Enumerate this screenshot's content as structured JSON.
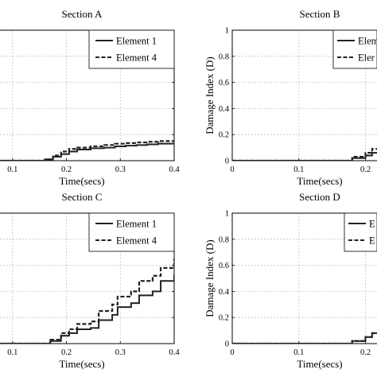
{
  "chart_data": [
    {
      "type": "line",
      "title": "Section A",
      "xlabel": "Time(secs)",
      "ylabel": "",
      "xlim": [
        0,
        0.4
      ],
      "ylim": [
        0,
        1
      ],
      "xticks": [
        "0.1",
        "0.2",
        "0.3",
        "0.4"
      ],
      "yticks": [],
      "grid": true,
      "legend": "top-right",
      "series": [
        {
          "name": "Element 1",
          "style": "solid",
          "x": [
            0,
            0.12,
            0.16,
            0.175,
            0.19,
            0.205,
            0.22,
            0.245,
            0.27,
            0.29,
            0.31,
            0.33,
            0.35,
            0.37,
            0.4
          ],
          "y": [
            0,
            0.0,
            0.01,
            0.03,
            0.05,
            0.07,
            0.085,
            0.095,
            0.1,
            0.11,
            0.115,
            0.12,
            0.125,
            0.13,
            0.13
          ]
        },
        {
          "name": "Element 4",
          "style": "dashed",
          "x": [
            0,
            0.12,
            0.16,
            0.175,
            0.19,
            0.205,
            0.22,
            0.245,
            0.27,
            0.29,
            0.31,
            0.33,
            0.35,
            0.37,
            0.4
          ],
          "y": [
            0,
            0.0,
            0.01,
            0.04,
            0.07,
            0.09,
            0.1,
            0.11,
            0.12,
            0.13,
            0.135,
            0.14,
            0.145,
            0.15,
            0.155
          ]
        }
      ]
    },
    {
      "type": "line",
      "title": "Section B",
      "xlabel": "Time(secs)",
      "ylabel": "Damage Index (D)",
      "xlim": [
        0,
        0.4
      ],
      "ylim": [
        0,
        1
      ],
      "xticks": [
        "0",
        "0.1",
        "0.2",
        "0.3"
      ],
      "yticks": [
        "0",
        "0.2",
        "0.4",
        "0.6",
        "0.8",
        "1"
      ],
      "grid": true,
      "legend": "top-right",
      "series": [
        {
          "name": "Elem",
          "style": "solid",
          "x": [
            0,
            0.14,
            0.18,
            0.2,
            0.21,
            0.23,
            0.245,
            0.26,
            0.275,
            0.29,
            0.3,
            0.31
          ],
          "y": [
            0,
            0.0,
            0.02,
            0.04,
            0.06,
            0.1,
            0.12,
            0.12,
            0.17,
            0.17,
            0.22,
            0.24
          ]
        },
        {
          "name": "Eler",
          "style": "dashed",
          "x": [
            0,
            0.14,
            0.18,
            0.2,
            0.21,
            0.23,
            0.245,
            0.26,
            0.275,
            0.29,
            0.3,
            0.31
          ],
          "y": [
            0,
            0.0,
            0.03,
            0.06,
            0.09,
            0.14,
            0.17,
            0.18,
            0.24,
            0.25,
            0.29,
            0.32
          ]
        }
      ]
    },
    {
      "type": "line",
      "title": "Section C",
      "xlabel": "Time(secs)",
      "ylabel": "",
      "xlim": [
        0,
        0.4
      ],
      "ylim": [
        0,
        1
      ],
      "xticks": [
        "0.1",
        "0.2",
        "0.3",
        "0.4"
      ],
      "yticks": [],
      "grid": true,
      "legend": "top-right",
      "series": [
        {
          "name": "Element 1",
          "style": "solid",
          "x": [
            0,
            0.12,
            0.17,
            0.19,
            0.205,
            0.22,
            0.245,
            0.26,
            0.285,
            0.295,
            0.32,
            0.335,
            0.36,
            0.375,
            0.4
          ],
          "y": [
            0,
            0.0,
            0.02,
            0.06,
            0.08,
            0.11,
            0.12,
            0.18,
            0.22,
            0.28,
            0.31,
            0.37,
            0.4,
            0.48,
            0.53
          ]
        },
        {
          "name": "Element 4",
          "style": "dashed",
          "x": [
            0,
            0.12,
            0.17,
            0.19,
            0.205,
            0.22,
            0.245,
            0.26,
            0.285,
            0.295,
            0.32,
            0.335,
            0.36,
            0.375,
            0.4
          ],
          "y": [
            0,
            0.0,
            0.03,
            0.08,
            0.11,
            0.15,
            0.17,
            0.25,
            0.3,
            0.36,
            0.4,
            0.48,
            0.52,
            0.58,
            0.65
          ]
        }
      ]
    },
    {
      "type": "line",
      "title": "Section D",
      "xlabel": "Time(secs)",
      "ylabel": "Damage Index (D)",
      "xlim": [
        0,
        0.4
      ],
      "ylim": [
        0,
        1
      ],
      "xticks": [
        "0",
        "0.1",
        "0.2",
        "0.3"
      ],
      "yticks": [
        "0",
        "0.2",
        "0.4",
        "0.6",
        "0.8",
        "1"
      ],
      "grid": true,
      "legend": "top-right",
      "series": [
        {
          "name": "E",
          "style": "solid",
          "x": [
            0,
            0.14,
            0.18,
            0.2,
            0.21,
            0.23,
            0.245,
            0.265,
            0.28,
            0.295,
            0.31
          ],
          "y": [
            0,
            0.0,
            0.02,
            0.05,
            0.08,
            0.12,
            0.16,
            0.18,
            0.25,
            0.29,
            0.41
          ]
        },
        {
          "name": "E",
          "style": "dashed",
          "x": [
            0,
            0.14,
            0.18,
            0.2,
            0.21,
            0.23,
            0.245,
            0.265,
            0.28,
            0.295,
            0.31
          ],
          "y": [
            0,
            0.0,
            0.02,
            0.05,
            0.08,
            0.13,
            0.16,
            0.19,
            0.26,
            0.3,
            0.43
          ]
        }
      ]
    }
  ]
}
